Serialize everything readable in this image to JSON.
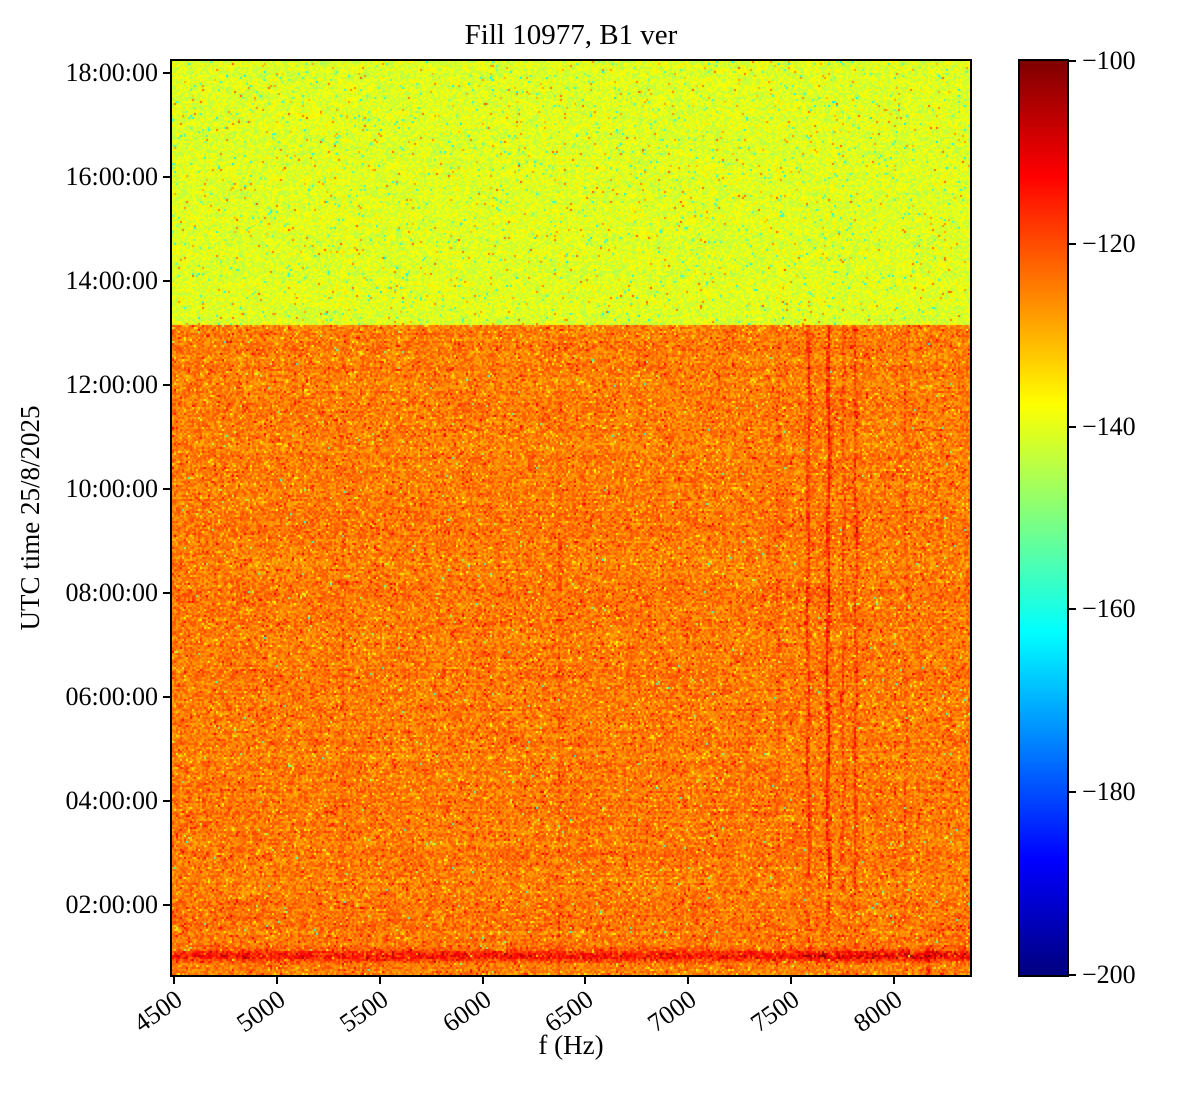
{
  "chart_data": {
    "type": "heatmap",
    "title": "Fill 10977, B1 ver",
    "xlabel": "f (Hz)",
    "ylabel": "UTC time 25/8/2025",
    "x_unit": "Hz",
    "x_range": [
      4490,
      8370
    ],
    "x_ticks": [
      {
        "value": 4500,
        "label": "4500"
      },
      {
        "value": 5000,
        "label": "5000"
      },
      {
        "value": 5500,
        "label": "5500"
      },
      {
        "value": 6000,
        "label": "6000"
      },
      {
        "value": 6500,
        "label": "6500"
      },
      {
        "value": 7000,
        "label": "7000"
      },
      {
        "value": 7500,
        "label": "7500"
      },
      {
        "value": 8000,
        "label": "8000"
      }
    ],
    "y_unit": "hours UTC, 25/8/2025",
    "y_range": [
      0.654,
      18.23
    ],
    "y_ticks": [
      {
        "hour": 18,
        "label": "18:00:00"
      },
      {
        "hour": 16,
        "label": "16:00:00"
      },
      {
        "hour": 14,
        "label": "14:00:00"
      },
      {
        "hour": 12,
        "label": "12:00:00"
      },
      {
        "hour": 10,
        "label": "10:00:00"
      },
      {
        "hour": 8,
        "label": "08:00:00"
      },
      {
        "hour": 6,
        "label": "06:00:00"
      },
      {
        "hour": 4,
        "label": "04:00:00"
      },
      {
        "hour": 2,
        "label": "02:00:00"
      }
    ],
    "colorbar": {
      "min": -200,
      "max": -100,
      "colormap": "jet",
      "ticks": [
        {
          "value": -100,
          "label": "−100"
        },
        {
          "value": -120,
          "label": "−120"
        },
        {
          "value": -140,
          "label": "−140"
        },
        {
          "value": -160,
          "label": "−160"
        },
        {
          "value": -180,
          "label": "−180"
        },
        {
          "value": -200,
          "label": "−200"
        }
      ]
    },
    "transition_hour": 13.15,
    "regions": [
      {
        "name": "upper-no-beam",
        "t_from": 13.15,
        "t_to": 18.23,
        "mean_db": -140.5,
        "noise_db": 4.5,
        "cyan_speck_rate": 0.02,
        "cyan_speck_db": -11,
        "orange_speck_rate": 0.015,
        "orange_speck_db": 11
      },
      {
        "name": "lower-beam",
        "t_from": 0.654,
        "t_to": 13.15,
        "mean_db": -124.5,
        "noise_db": 5.0,
        "yellow_speck_rate": 0.06,
        "yellow_speck_db": -6,
        "red_speck_rate": 0.05,
        "red_speck_db": 6,
        "green_speck_rate": 0.004,
        "green_speck_db": -19,
        "row_ripple_db": 1.2
      }
    ],
    "spectral_lines": [
      {
        "f": 7584,
        "amp_db": 8.0,
        "sigma_hz": 5.0
      },
      {
        "f": 7681,
        "amp_db": 11.0,
        "sigma_hz": 5.5
      },
      {
        "f": 7754,
        "amp_db": 5.5,
        "sigma_hz": 4.5
      },
      {
        "f": 7814,
        "amp_db": 7.5,
        "sigma_hz": 5.0
      },
      {
        "f": 8058,
        "amp_db": 3.5,
        "sigma_hz": 4.0
      }
    ],
    "line_intermittent_below_hour": 2.35,
    "faint_columns": [
      {
        "f": 5325,
        "boost_db": 2.2,
        "sigma_hz": 6
      },
      {
        "f": 6375,
        "boost_db": 2.8,
        "sigma_hz": 6
      },
      {
        "f": 7437,
        "boost_db": 3.2,
        "sigma_hz": 5
      }
    ],
    "events": {
      "horizontal_band": {
        "t_center": 1.02,
        "t_sigma": 0.11,
        "boost_db": 11,
        "dark_patch_f_min": 7550,
        "dark_patch_boost_db": 8.5,
        "dark_patch_rate": 0.28
      },
      "bottom_right_line": {
        "f": 8168,
        "amp_db": 8,
        "t_below": 1.25,
        "half_width_hz": 10
      }
    }
  }
}
